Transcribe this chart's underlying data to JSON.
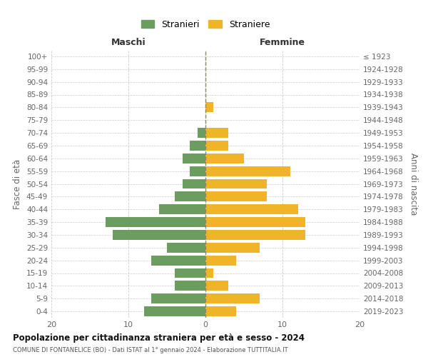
{
  "age_groups": [
    "0-4",
    "5-9",
    "10-14",
    "15-19",
    "20-24",
    "25-29",
    "30-34",
    "35-39",
    "40-44",
    "45-49",
    "50-54",
    "55-59",
    "60-64",
    "65-69",
    "70-74",
    "75-79",
    "80-84",
    "85-89",
    "90-94",
    "95-99",
    "100+"
  ],
  "birth_years": [
    "2019-2023",
    "2014-2018",
    "2009-2013",
    "2004-2008",
    "1999-2003",
    "1994-1998",
    "1989-1993",
    "1984-1988",
    "1979-1983",
    "1974-1978",
    "1969-1973",
    "1964-1968",
    "1959-1963",
    "1954-1958",
    "1949-1953",
    "1944-1948",
    "1939-1943",
    "1934-1938",
    "1929-1933",
    "1924-1928",
    "≤ 1923"
  ],
  "maschi": [
    8,
    7,
    4,
    4,
    7,
    5,
    12,
    13,
    6,
    4,
    3,
    2,
    3,
    2,
    1,
    0,
    0,
    0,
    0,
    0,
    0
  ],
  "femmine": [
    4,
    7,
    3,
    1,
    4,
    7,
    13,
    13,
    12,
    8,
    8,
    11,
    5,
    3,
    3,
    0,
    1,
    0,
    0,
    0,
    0
  ],
  "color_maschi": "#6b9e5e",
  "color_femmine": "#f0b429",
  "title": "Popolazione per cittadinanza straniera per età e sesso - 2024",
  "subtitle": "COMUNE DI FONTANELICE (BO) - Dati ISTAT al 1° gennaio 2024 - Elaborazione TUTTITALIA.IT",
  "xlabel_left": "Maschi",
  "xlabel_right": "Femmine",
  "ylabel_left": "Fasce di età",
  "ylabel_right": "Anni di nascita",
  "legend_maschi": "Stranieri",
  "legend_femmine": "Straniere",
  "xlim": 20,
  "background_color": "#ffffff",
  "grid_color": "#cccccc",
  "dashed_line_color": "#888866"
}
